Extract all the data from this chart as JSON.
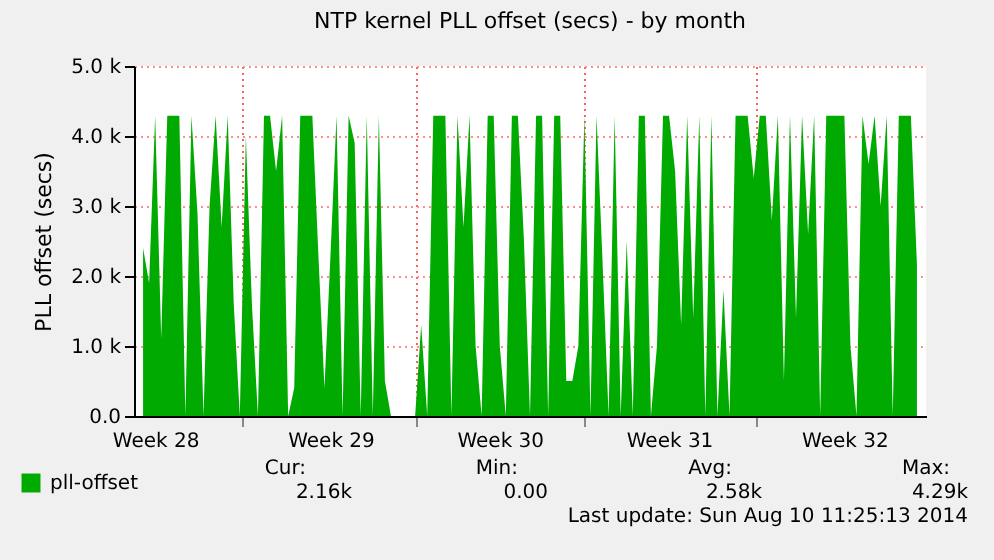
{
  "chart_data": {
    "type": "area",
    "title": "NTP kernel PLL offset (secs) - by month",
    "ylabel": "PLL offset (secs)",
    "ylim": [
      0,
      5000
    ],
    "yticks": [
      {
        "value": 0,
        "label": "0.0"
      },
      {
        "value": 1000,
        "label": "1.0 k"
      },
      {
        "value": 2000,
        "label": "2.0 k"
      },
      {
        "value": 3000,
        "label": "3.0 k"
      },
      {
        "value": 4000,
        "label": "4.0 k"
      },
      {
        "value": 5000,
        "label": "5.0 k"
      }
    ],
    "grid": true,
    "legend": "bottom left",
    "categories": [
      null,
      null,
      "Week 28",
      null,
      null,
      null,
      null,
      null,
      null,
      null,
      null,
      null,
      null,
      null,
      null,
      null,
      null,
      null,
      null,
      null,
      null,
      null,
      null,
      null,
      null,
      null,
      null,
      null,
      null,
      null,
      null,
      "Week 29",
      null,
      null,
      null,
      null,
      null,
      null,
      null,
      null,
      null,
      null,
      null,
      null,
      null,
      null,
      null,
      null,
      null,
      null,
      null,
      null,
      null,
      null,
      null,
      null,
      null,
      null,
      null,
      "Week 30",
      null,
      null,
      null,
      null,
      null,
      null,
      null,
      null,
      null,
      null,
      null,
      null,
      null,
      null,
      null,
      null,
      null,
      null,
      null,
      null,
      null,
      null,
      null,
      null,
      null,
      null,
      null,
      "Week 31",
      null,
      null,
      null,
      null,
      null,
      null,
      null,
      null,
      null,
      null,
      null,
      null,
      null,
      null,
      null,
      null,
      null,
      null,
      null,
      null,
      null,
      null,
      null,
      null,
      null,
      null,
      null,
      null,
      "Week 32",
      null,
      null,
      null,
      null,
      null,
      null,
      null,
      null,
      null,
      null,
      null,
      null
    ],
    "series": [
      {
        "name": "pll-offset",
        "color": "#00aa00",
        "values": [
          2400,
          1900,
          4290,
          1100,
          4290,
          4290,
          4290,
          0,
          4290,
          2900,
          0,
          3000,
          4290,
          2700,
          4290,
          1600,
          0,
          4000,
          1600,
          0,
          4290,
          4290,
          3500,
          4290,
          0,
          400,
          4290,
          4290,
          4290,
          2300,
          400,
          2300,
          4290,
          0,
          4290,
          3900,
          0,
          4290,
          0,
          4290,
          500,
          0,
          0,
          0,
          0,
          0,
          1300,
          0,
          4290,
          4290,
          4290,
          0,
          4290,
          2700,
          4290,
          1000,
          0,
          4290,
          4290,
          1000,
          0,
          4290,
          4290,
          2500,
          0,
          4290,
          4290,
          0,
          4290,
          4290,
          500,
          500,
          1000,
          4290,
          0,
          4290,
          2200,
          0,
          4290,
          0,
          2500,
          0,
          4290,
          4290,
          0,
          1000,
          4290,
          4290,
          3500,
          1300,
          4290,
          1400,
          4290,
          0,
          4290,
          0,
          1800,
          0,
          4290,
          4290,
          4290,
          3400,
          4290,
          4290,
          2800,
          4290,
          500,
          4290,
          1400,
          4290,
          2600,
          4290,
          0,
          4290,
          4290,
          4290,
          4290,
          1000,
          0,
          4290,
          3600,
          4290,
          3000,
          4290,
          0,
          4290,
          4290,
          4290,
          2160
        ]
      }
    ],
    "annotations": [
      "Cur:",
      "2.16k",
      "Min:",
      "0.00",
      "Avg:",
      "2.58k",
      "Max:",
      "4.29k",
      "Last update: Sun Aug 10 11:25:13 2014"
    ]
  }
}
